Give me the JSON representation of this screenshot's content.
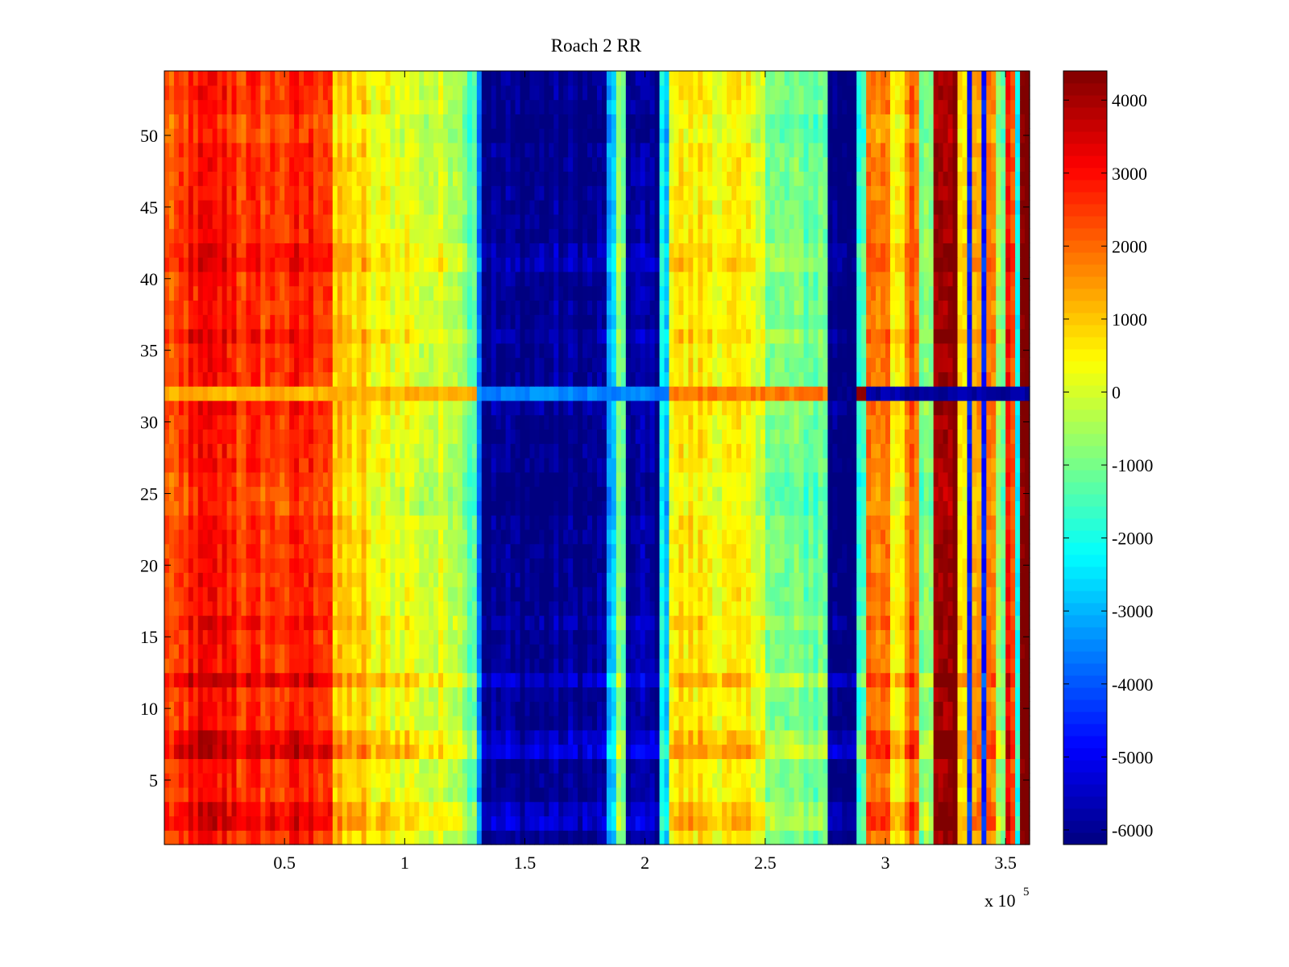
{
  "chart_data": {
    "type": "heatmap",
    "title": "Roach 2 RR",
    "xlabel": "",
    "ylabel": "",
    "x_multiplier_label": "x 10",
    "x_multiplier_exponent": "5",
    "xlim": [
      0,
      3.6
    ],
    "ylim": [
      0.5,
      54.5
    ],
    "x_ticks": [
      0.5,
      1,
      1.5,
      2,
      2.5,
      3,
      3.5
    ],
    "x_tick_labels": [
      "0.5",
      "1",
      "1.5",
      "2",
      "2.5",
      "3",
      "3.5"
    ],
    "y_ticks": [
      5,
      10,
      15,
      20,
      25,
      30,
      35,
      40,
      45,
      50
    ],
    "y_tick_labels": [
      "5",
      "10",
      "15",
      "20",
      "25",
      "30",
      "35",
      "40",
      "45",
      "50"
    ],
    "rows": 54,
    "colormap": "jet",
    "colorbar": {
      "clim": [
        -6200,
        4400
      ],
      "ticks": [
        4000,
        3000,
        2000,
        1000,
        0,
        -1000,
        -2000,
        -3000,
        -4000,
        -5000,
        -6000
      ],
      "tick_labels": [
        "4000",
        "3000",
        "2000",
        "1000",
        "0",
        "-1000",
        "-2000",
        "-3000",
        "-4000",
        "-5000",
        "-6000"
      ]
    },
    "column_profile": [
      {
        "x0": 0.0,
        "x1": 0.1,
        "value": 2200
      },
      {
        "x0": 0.1,
        "x1": 0.3,
        "value": 2900
      },
      {
        "x0": 0.3,
        "x1": 0.55,
        "value": 2500
      },
      {
        "x0": 0.55,
        "x1": 0.7,
        "value": 2700
      },
      {
        "x0": 0.7,
        "x1": 0.85,
        "value": 800
      },
      {
        "x0": 0.85,
        "x1": 1.05,
        "value": 300
      },
      {
        "x0": 1.05,
        "x1": 1.25,
        "value": -100
      },
      {
        "x0": 1.25,
        "x1": 1.3,
        "value": -1000
      },
      {
        "x0": 1.3,
        "x1": 1.33,
        "value": -3500
      },
      {
        "x0": 1.33,
        "x1": 1.85,
        "value": -6100
      },
      {
        "x0": 1.85,
        "x1": 1.88,
        "value": -3000
      },
      {
        "x0": 1.88,
        "x1": 1.93,
        "value": -1200
      },
      {
        "x0": 1.93,
        "x1": 2.07,
        "value": -5900
      },
      {
        "x0": 2.07,
        "x1": 2.1,
        "value": -2500
      },
      {
        "x0": 2.1,
        "x1": 2.3,
        "value": 600
      },
      {
        "x0": 2.3,
        "x1": 2.5,
        "value": 300
      },
      {
        "x0": 2.5,
        "x1": 2.76,
        "value": -1100
      },
      {
        "x0": 2.76,
        "x1": 2.88,
        "value": -6200
      },
      {
        "x0": 2.88,
        "x1": 2.92,
        "value": -1500
      },
      {
        "x0": 2.92,
        "x1": 3.02,
        "value": 1600
      },
      {
        "x0": 3.02,
        "x1": 3.08,
        "value": 500
      },
      {
        "x0": 3.08,
        "x1": 3.15,
        "value": 1900
      },
      {
        "x0": 3.15,
        "x1": 3.2,
        "value": -800
      },
      {
        "x0": 3.2,
        "x1": 3.3,
        "value": 4400
      },
      {
        "x0": 3.3,
        "x1": 3.34,
        "value": 500
      },
      {
        "x0": 3.34,
        "x1": 3.36,
        "value": -4500
      },
      {
        "x0": 3.36,
        "x1": 3.4,
        "value": 1500
      },
      {
        "x0": 3.4,
        "x1": 3.42,
        "value": -5000
      },
      {
        "x0": 3.42,
        "x1": 3.46,
        "value": 2000
      },
      {
        "x0": 3.46,
        "x1": 3.5,
        "value": -1000
      },
      {
        "x0": 3.5,
        "x1": 3.55,
        "value": 2500
      },
      {
        "x0": 3.55,
        "x1": 3.57,
        "value": -2000
      },
      {
        "x0": 3.57,
        "x1": 3.6,
        "value": 4400
      }
    ],
    "row_offsets": [
      {
        "row": 2,
        "delta": 700
      },
      {
        "row": 3,
        "delta": 500
      },
      {
        "row": 7,
        "delta": 900
      },
      {
        "row": 8,
        "delta": 600
      },
      {
        "row": 12,
        "delta": 700
      },
      {
        "row": 16,
        "delta": 300
      },
      {
        "row": 24,
        "delta": -300
      },
      {
        "row": 25,
        "delta": -300
      },
      {
        "row": 26,
        "delta": -200
      },
      {
        "row": 31,
        "delta": 200
      },
      {
        "row": 36,
        "delta": 400
      },
      {
        "row": 41,
        "delta": 400
      },
      {
        "row": 42,
        "delta": 300
      },
      {
        "row": 50,
        "delta": -300
      },
      {
        "row": 51,
        "delta": -300
      }
    ],
    "anomalous_row": {
      "row": 32,
      "profile": [
        {
          "x0": 0.0,
          "x1": 1.3,
          "value": 1200
        },
        {
          "x0": 1.3,
          "x1": 2.1,
          "value": -3500
        },
        {
          "x0": 2.1,
          "x1": 2.76,
          "value": 1800
        },
        {
          "x0": 2.76,
          "x1": 2.88,
          "value": -6200
        },
        {
          "x0": 2.88,
          "x1": 2.93,
          "value": 4200
        },
        {
          "x0": 2.93,
          "x1": 3.6,
          "value": -5800
        }
      ]
    }
  }
}
